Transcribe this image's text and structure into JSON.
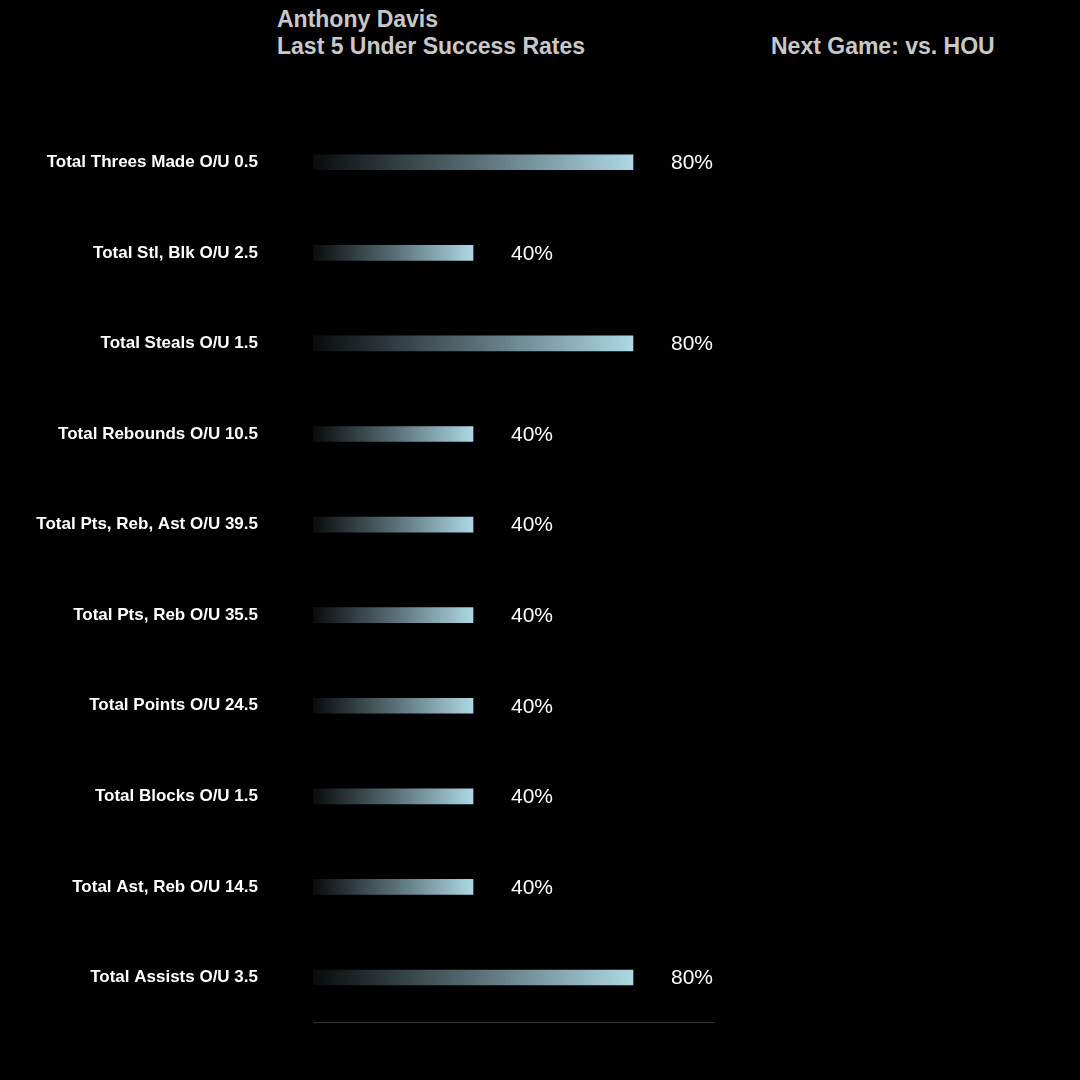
{
  "chart_data": {
    "type": "bar",
    "orientation": "horizontal",
    "title": "Anthony Davis",
    "subtitle": "Last 5 Under Success Rates",
    "annotations": [
      "Next Game: vs. HOU"
    ],
    "categories": [
      "Total Threes Made O/U 0.5",
      "Total Stl, Blk O/U 2.5",
      "Total Steals O/U 1.5",
      "Total Rebounds O/U 10.5",
      "Total Pts, Reb, Ast O/U 39.5",
      "Total Pts, Reb O/U 35.5",
      "Total Points O/U 24.5",
      "Total Blocks O/U 1.5",
      "Total Ast, Reb O/U 14.5",
      "Total Assists O/U 3.5"
    ],
    "values": [
      80,
      40,
      80,
      40,
      40,
      40,
      40,
      40,
      40,
      80
    ],
    "value_labels": [
      "80%",
      "40%",
      "80%",
      "40%",
      "40%",
      "40%",
      "40%",
      "40%",
      "40%",
      "80%"
    ],
    "color": "#add8e6",
    "xlim": [
      0,
      100
    ],
    "grid": false,
    "data_labels": true,
    "tick_labels": "y"
  }
}
